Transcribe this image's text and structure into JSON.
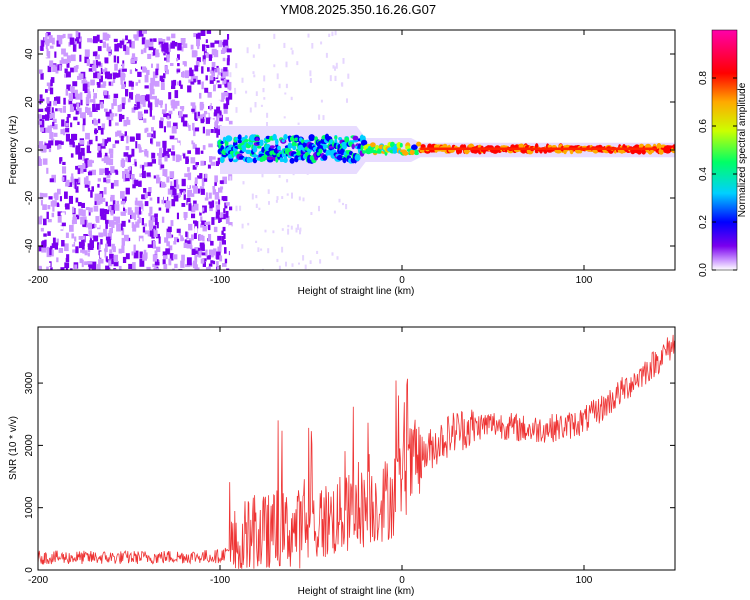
{
  "title": "YM08.2025.350.16.26.G07",
  "chart_data": [
    {
      "type": "heatmap",
      "name": "spectrogram",
      "xlabel": "Height of straight line (km)",
      "ylabel": "Frequency (Hz)",
      "xlim": [
        -200,
        150
      ],
      "ylim": [
        -50,
        50
      ],
      "xticks": [
        -200,
        -100,
        0,
        100
      ],
      "xtick_labels": [
        "-200",
        "-100",
        "0",
        "100"
      ],
      "yticks": [
        -40,
        -20,
        0,
        20,
        40
      ],
      "ytick_labels": [
        "-40",
        "-20",
        "0",
        "20",
        "40"
      ],
      "noise_region": [
        -200,
        -95
      ],
      "signal_start": -100,
      "signal_line_frequency": 0.5,
      "colorbar": {
        "label": "Normalized spectral amplitude",
        "range": [
          0,
          1
        ],
        "ticks": [
          0,
          0.2,
          0.4,
          0.6,
          0.8
        ],
        "tick_labels": [
          "0.0",
          "0.2",
          "0.4",
          "0.6",
          "0.8"
        ],
        "colors": [
          "#ffffff",
          "#cc99ff",
          "#7a00ee",
          "#0000ff",
          "#00d0ff",
          "#00ff66",
          "#ccff00",
          "#ffaa00",
          "#ff0000",
          "#ff00aa"
        ]
      }
    },
    {
      "type": "line",
      "name": "snr",
      "xlabel": "Height of straight line (km)",
      "ylabel": "SNR (10 * v/v)",
      "xlim": [
        -200,
        150
      ],
      "ylim": [
        0,
        3900
      ],
      "xticks": [
        -200,
        -100,
        0,
        100
      ],
      "xtick_labels": [
        "-200",
        "-100",
        "0",
        "100"
      ],
      "yticks": [
        0,
        1000,
        2000,
        3000
      ],
      "ytick_labels": [
        "0",
        "1000",
        "2000",
        "3000"
      ],
      "color": "#ee3333",
      "trend_x": [
        -200,
        -150,
        -100,
        -90,
        -80,
        -70,
        -60,
        -50,
        -40,
        -30,
        -20,
        -10,
        -5,
        0,
        10,
        20,
        30,
        50,
        70,
        90,
        100,
        110,
        120,
        130,
        140,
        150
      ],
      "trend_y": [
        200,
        200,
        220,
        400,
        550,
        600,
        650,
        700,
        800,
        900,
        1000,
        1100,
        1200,
        1500,
        1800,
        2050,
        2250,
        2350,
        2250,
        2300,
        2400,
        2600,
        2850,
        3100,
        3350,
        3650
      ]
    }
  ]
}
